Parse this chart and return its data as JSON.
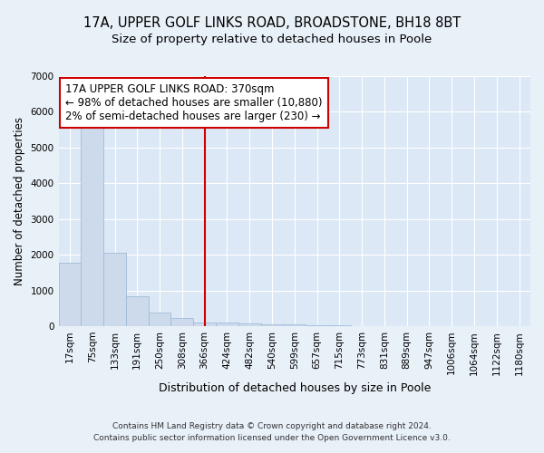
{
  "title1": "17A, UPPER GOLF LINKS ROAD, BROADSTONE, BH18 8BT",
  "title2": "Size of property relative to detached houses in Poole",
  "xlabel": "Distribution of detached houses by size in Poole",
  "ylabel": "Number of detached properties",
  "footer1": "Contains HM Land Registry data © Crown copyright and database right 2024.",
  "footer2": "Contains public sector information licensed under the Open Government Licence v3.0.",
  "bar_labels": [
    "17sqm",
    "75sqm",
    "133sqm",
    "191sqm",
    "250sqm",
    "308sqm",
    "366sqm",
    "424sqm",
    "482sqm",
    "540sqm",
    "599sqm",
    "657sqm",
    "715sqm",
    "773sqm",
    "831sqm",
    "889sqm",
    "947sqm",
    "1006sqm",
    "1064sqm",
    "1122sqm",
    "1180sqm"
  ],
  "bar_values": [
    1780,
    5780,
    2060,
    830,
    370,
    240,
    100,
    115,
    90,
    55,
    45,
    38,
    32,
    5,
    5,
    5,
    4,
    4,
    3,
    3,
    5
  ],
  "bar_color": "#ccdaec",
  "bar_edge_color": "#a0bcd8",
  "vline_x": 6,
  "vline_color": "#cc0000",
  "annotation_text": "17A UPPER GOLF LINKS ROAD: 370sqm\n← 98% of detached houses are smaller (10,880)\n2% of semi-detached houses are larger (230) →",
  "annotation_box_color": "#ffffff",
  "annotation_box_edge": "#cc0000",
  "ylim": [
    0,
    7000
  ],
  "yticks": [
    0,
    1000,
    2000,
    3000,
    4000,
    5000,
    6000,
    7000
  ],
  "background_color": "#dce8f5",
  "grid_color": "#ffffff",
  "fig_bg_color": "#e8f0f8",
  "title_fontsize": 10.5,
  "subtitle_fontsize": 9.5,
  "annotation_fontsize": 8.5,
  "ylabel_fontsize": 8.5,
  "xlabel_fontsize": 9,
  "footer_fontsize": 6.5,
  "tick_fontsize": 7.5
}
